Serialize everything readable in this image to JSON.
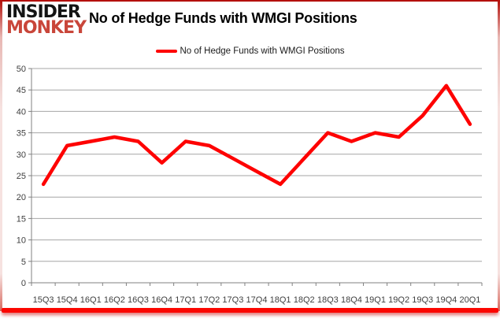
{
  "logo": {
    "line1": "INSIDER",
    "line2": "MONKEY"
  },
  "header": {
    "title": "No of Hedge Funds with WMGI Positions"
  },
  "legend": {
    "label": "No of Hedge Funds with WMGI Positions"
  },
  "colors": {
    "series_red": "#fe0000",
    "logo_monkey_red": "#c9463a",
    "frame_red": "#b40f0a",
    "gridline_gray": "#a6a6a6",
    "axis_gray": "#808080",
    "tick_text": "#3f3f3f"
  },
  "chart_data": {
    "type": "line",
    "title": "No of Hedge Funds with WMGI Positions",
    "xlabel": "",
    "ylabel": "",
    "categories": [
      "15Q3",
      "15Q4",
      "16Q1",
      "16Q2",
      "16Q3",
      "16Q4",
      "17Q1",
      "17Q2",
      "17Q3",
      "17Q4",
      "18Q1",
      "18Q2",
      "18Q3",
      "18Q4",
      "19Q1",
      "19Q2",
      "19Q3",
      "19Q4",
      "20Q1"
    ],
    "series": [
      {
        "name": "No of Hedge Funds with WMGI Positions",
        "color": "#fe0000",
        "values": [
          23,
          32,
          33,
          34,
          33,
          28,
          33,
          32,
          29,
          26,
          23,
          29,
          35,
          33,
          35,
          34,
          39,
          46,
          37
        ]
      }
    ],
    "ylim": [
      0,
      50
    ],
    "ytick_step": 5,
    "grid": "horizontal",
    "legend_position": "top-center"
  }
}
